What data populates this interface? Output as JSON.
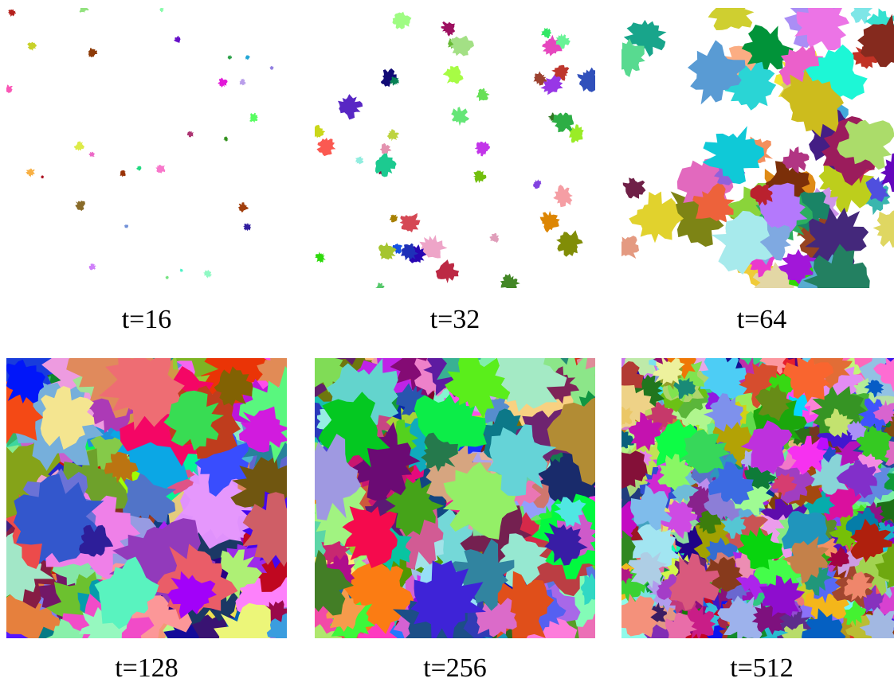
{
  "panels": [
    {
      "label": "t=16"
    },
    {
      "label": "t=32"
    },
    {
      "label": "t=64"
    },
    {
      "label": "t=128"
    },
    {
      "label": "t=256"
    },
    {
      "label": "t=512"
    }
  ]
}
